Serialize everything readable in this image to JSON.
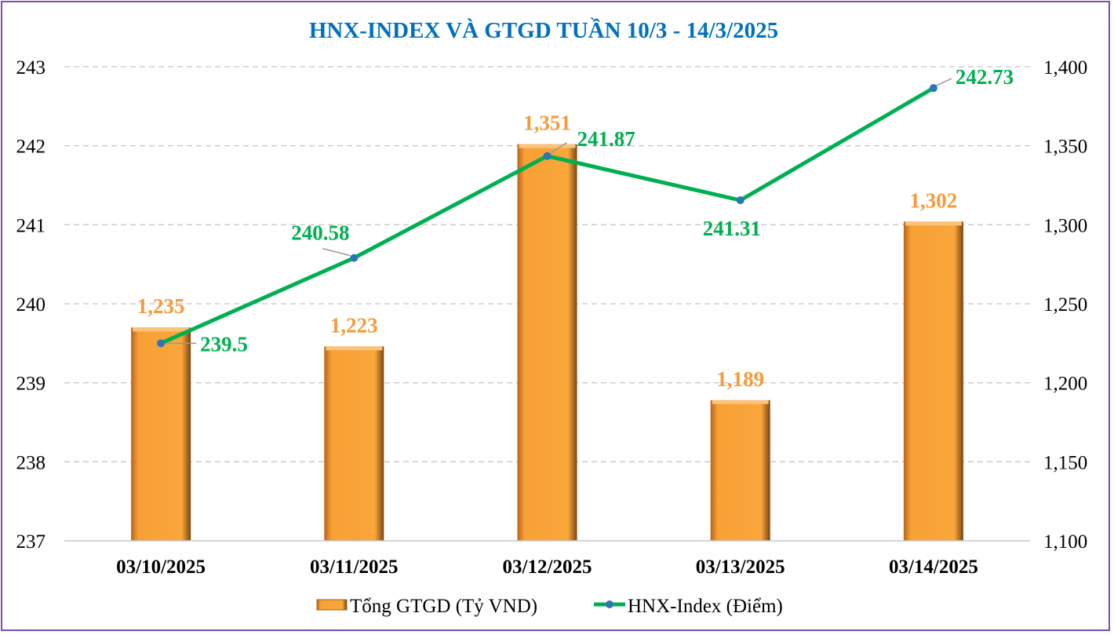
{
  "chart_data": {
    "type": "bar+line",
    "title": "HNX-INDEX VÀ GTGD TUẦN 10/3 -  14/3/2025",
    "categories": [
      "03/10/2025",
      "03/11/2025",
      "03/12/2025",
      "03/13/2025",
      "03/14/2025"
    ],
    "series": [
      {
        "name": "Tổng GTGD (Tỷ VND)",
        "type": "bar",
        "axis": "right",
        "values": [
          1235,
          1223,
          1351,
          1189,
          1302
        ],
        "labels": [
          "1,235",
          "1,223",
          "1,351",
          "1,189",
          "1,302"
        ],
        "color": "#f7a035"
      },
      {
        "name": "HNX-Index (Điểm)",
        "type": "line",
        "axis": "left",
        "values": [
          239.5,
          240.58,
          241.87,
          241.31,
          242.73
        ],
        "labels": [
          "239.5",
          "240.58",
          "241.87",
          "241.31",
          "242.73"
        ],
        "color": "#00b050",
        "marker_color": "#2e75b6"
      }
    ],
    "left_axis": {
      "ylim": [
        237,
        243
      ],
      "ticks": [
        "237",
        "238",
        "239",
        "240",
        "241",
        "242",
        "243"
      ]
    },
    "right_axis": {
      "ylim": [
        1100,
        1400
      ],
      "ticks": [
        "1,100",
        "1,150",
        "1,200",
        "1,250",
        "1,300",
        "1,350",
        "1,400"
      ]
    },
    "grid": true,
    "legend": "bottom",
    "title_color": "#0070c0",
    "bar_label_color": "#f79a3a"
  }
}
